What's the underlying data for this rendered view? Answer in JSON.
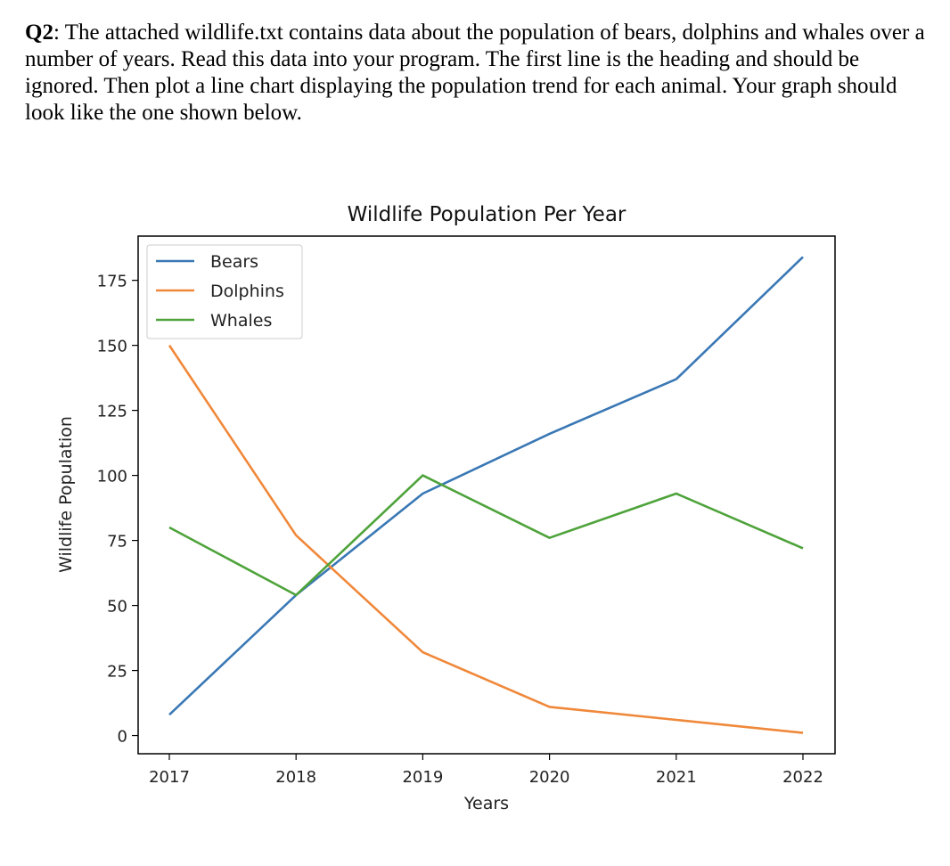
{
  "question": {
    "label": "Q2",
    "text": ": The attached wildlife.txt contains data about the population of bears, dolphins and whales over a number of years. Read this data into your program.  The first line is the heading and should be ignored.  Then plot a line chart displaying the population trend for each animal.  Your graph should look like the one shown below."
  },
  "chart_data": {
    "type": "line",
    "title": "Wildlife Population Per Year",
    "xlabel": "Years",
    "ylabel": "Wildlife Population",
    "categories": [
      "2017",
      "2018",
      "2019",
      "2020",
      "2021",
      "2022"
    ],
    "series": [
      {
        "name": "Bears",
        "color": "#3a78b5",
        "values": [
          8,
          54,
          93,
          116,
          137,
          184
        ]
      },
      {
        "name": "Dolphins",
        "color": "#f0883a",
        "values": [
          150,
          77,
          32,
          11,
          6,
          1
        ]
      },
      {
        "name": "Whales",
        "color": "#4ea33b",
        "values": [
          80,
          54,
          100,
          76,
          93,
          72
        ]
      }
    ],
    "yticks": [
      0,
      25,
      50,
      75,
      100,
      125,
      150,
      175
    ],
    "ylim": [
      -7,
      192
    ],
    "legend": "top-left",
    "grid": false
  }
}
